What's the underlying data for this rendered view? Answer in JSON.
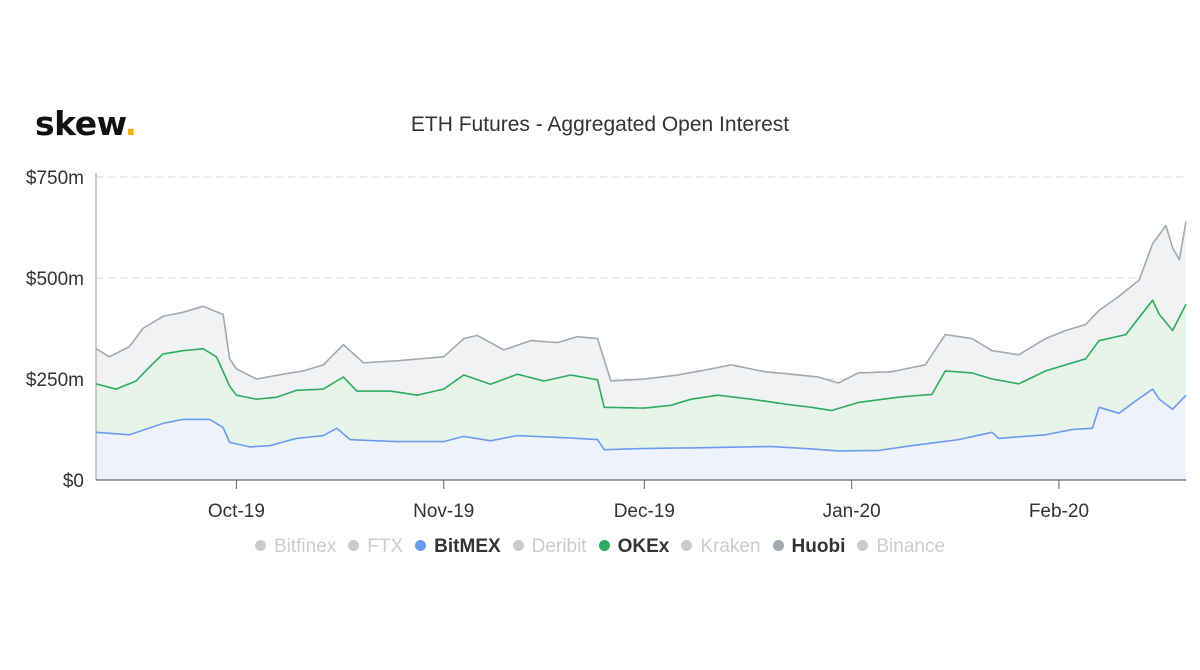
{
  "logo": {
    "text": "skew",
    "dot": "."
  },
  "chart_data": {
    "type": "area",
    "title": "ETH Futures - Aggregated Open Interest",
    "stacked": true,
    "ylim": [
      0,
      750
    ],
    "y_ticks": [
      "$0",
      "$250m",
      "$500m",
      "$750m"
    ],
    "y_tick_values": [
      0,
      250,
      500,
      750
    ],
    "x_range": [
      "2019-09-10",
      "2020-02-20"
    ],
    "x_ticks": [
      {
        "date": "2019-10-01",
        "label": "Oct-19"
      },
      {
        "date": "2019-11-01",
        "label": "Nov-19"
      },
      {
        "date": "2019-12-01",
        "label": "Dec-19"
      },
      {
        "date": "2020-01-01",
        "label": "Jan-20"
      },
      {
        "date": "2020-02-01",
        "label": "Feb-20"
      }
    ],
    "grid": true,
    "legend_position": "bottom",
    "legend": [
      {
        "name": "Bitfinex",
        "color": "#cccccc",
        "visible": false
      },
      {
        "name": "FTX",
        "color": "#cccccc",
        "visible": false
      },
      {
        "name": "BitMEX",
        "color": "#6b9bef",
        "visible": true
      },
      {
        "name": "Deribit",
        "color": "#cccccc",
        "visible": false
      },
      {
        "name": "OKEx",
        "color": "#2eab5e",
        "visible": true
      },
      {
        "name": "Kraken",
        "color": "#cccccc",
        "visible": false
      },
      {
        "name": "Huobi",
        "color": "#a3a9b1",
        "visible": true
      },
      {
        "name": "Binance",
        "color": "#cccccc",
        "visible": false
      }
    ],
    "series": [
      {
        "name": "BitMEX",
        "color": "#6b9bef",
        "fill": "#eef2fd",
        "points": [
          [
            "2019-09-10",
            118
          ],
          [
            "2019-09-15",
            112
          ],
          [
            "2019-09-20",
            140
          ],
          [
            "2019-09-23",
            150
          ],
          [
            "2019-09-27",
            150
          ],
          [
            "2019-09-29",
            130
          ],
          [
            "2019-09-30",
            93
          ],
          [
            "2019-10-03",
            82
          ],
          [
            "2019-10-06",
            85
          ],
          [
            "2019-10-10",
            103
          ],
          [
            "2019-10-14",
            110
          ],
          [
            "2019-10-16",
            128
          ],
          [
            "2019-10-18",
            100
          ],
          [
            "2019-10-25",
            95
          ],
          [
            "2019-11-01",
            95
          ],
          [
            "2019-11-04",
            108
          ],
          [
            "2019-11-08",
            97
          ],
          [
            "2019-11-12",
            110
          ],
          [
            "2019-11-20",
            104
          ],
          [
            "2019-11-24",
            100
          ],
          [
            "2019-11-25",
            75
          ],
          [
            "2019-12-01",
            78
          ],
          [
            "2019-12-10",
            80
          ],
          [
            "2019-12-20",
            83
          ],
          [
            "2019-12-26",
            77
          ],
          [
            "2019-12-30",
            72
          ],
          [
            "2020-01-05",
            73
          ],
          [
            "2020-01-10",
            85
          ],
          [
            "2020-01-17",
            100
          ],
          [
            "2020-01-22",
            118
          ],
          [
            "2020-01-23",
            103
          ],
          [
            "2020-01-30",
            112
          ],
          [
            "2020-02-03",
            125
          ],
          [
            "2020-02-06",
            128
          ],
          [
            "2020-02-07",
            180
          ],
          [
            "2020-02-10",
            165
          ],
          [
            "2020-02-12",
            190
          ],
          [
            "2020-02-15",
            225
          ],
          [
            "2020-02-16",
            200
          ],
          [
            "2020-02-18",
            175
          ],
          [
            "2020-02-20",
            210
          ]
        ]
      },
      {
        "name": "OKEx",
        "color": "#2eab5e",
        "fill": "#e6f4ea",
        "points": [
          [
            "2019-09-10",
            238
          ],
          [
            "2019-09-13",
            225
          ],
          [
            "2019-09-16",
            245
          ],
          [
            "2019-09-18",
            280
          ],
          [
            "2019-09-20",
            312
          ],
          [
            "2019-09-23",
            320
          ],
          [
            "2019-09-26",
            325
          ],
          [
            "2019-09-28",
            305
          ],
          [
            "2019-09-30",
            232
          ],
          [
            "2019-10-01",
            210
          ],
          [
            "2019-10-04",
            200
          ],
          [
            "2019-10-07",
            205
          ],
          [
            "2019-10-10",
            222
          ],
          [
            "2019-10-14",
            225
          ],
          [
            "2019-10-17",
            255
          ],
          [
            "2019-10-19",
            220
          ],
          [
            "2019-10-24",
            220
          ],
          [
            "2019-10-28",
            210
          ],
          [
            "2019-11-01",
            225
          ],
          [
            "2019-11-04",
            260
          ],
          [
            "2019-11-08",
            237
          ],
          [
            "2019-11-12",
            262
          ],
          [
            "2019-11-16",
            245
          ],
          [
            "2019-11-20",
            260
          ],
          [
            "2019-11-24",
            248
          ],
          [
            "2019-11-25",
            180
          ],
          [
            "2019-12-01",
            178
          ],
          [
            "2019-12-05",
            185
          ],
          [
            "2019-12-08",
            200
          ],
          [
            "2019-12-12",
            210
          ],
          [
            "2019-12-17",
            200
          ],
          [
            "2019-12-22",
            188
          ],
          [
            "2019-12-26",
            180
          ],
          [
            "2019-12-29",
            172
          ],
          [
            "2020-01-02",
            192
          ],
          [
            "2020-01-08",
            205
          ],
          [
            "2020-01-13",
            212
          ],
          [
            "2020-01-15",
            270
          ],
          [
            "2020-01-19",
            265
          ],
          [
            "2020-01-22",
            250
          ],
          [
            "2020-01-26",
            238
          ],
          [
            "2020-01-30",
            270
          ],
          [
            "2020-02-02",
            285
          ],
          [
            "2020-02-05",
            300
          ],
          [
            "2020-02-07",
            345
          ],
          [
            "2020-02-11",
            360
          ],
          [
            "2020-02-15",
            445
          ],
          [
            "2020-02-16",
            410
          ],
          [
            "2020-02-18",
            370
          ],
          [
            "2020-02-20",
            435
          ]
        ]
      },
      {
        "name": "Huobi",
        "color": "#a3a9b1",
        "fill": "#f1f2f3",
        "points": [
          [
            "2019-09-10",
            325
          ],
          [
            "2019-09-12",
            305
          ],
          [
            "2019-09-15",
            330
          ],
          [
            "2019-09-17",
            375
          ],
          [
            "2019-09-20",
            405
          ],
          [
            "2019-09-23",
            415
          ],
          [
            "2019-09-26",
            430
          ],
          [
            "2019-09-29",
            410
          ],
          [
            "2019-09-30",
            300
          ],
          [
            "2019-10-01",
            275
          ],
          [
            "2019-10-04",
            250
          ],
          [
            "2019-10-08",
            262
          ],
          [
            "2019-10-11",
            270
          ],
          [
            "2019-10-14",
            285
          ],
          [
            "2019-10-17",
            335
          ],
          [
            "2019-10-20",
            290
          ],
          [
            "2019-10-25",
            295
          ],
          [
            "2019-11-01",
            305
          ],
          [
            "2019-11-04",
            350
          ],
          [
            "2019-11-06",
            358
          ],
          [
            "2019-11-10",
            322
          ],
          [
            "2019-11-14",
            345
          ],
          [
            "2019-11-18",
            340
          ],
          [
            "2019-11-21",
            355
          ],
          [
            "2019-11-24",
            350
          ],
          [
            "2019-11-26",
            245
          ],
          [
            "2019-12-01",
            250
          ],
          [
            "2019-12-06",
            260
          ],
          [
            "2019-12-10",
            272
          ],
          [
            "2019-12-14",
            285
          ],
          [
            "2019-12-19",
            268
          ],
          [
            "2019-12-23",
            262
          ],
          [
            "2019-12-27",
            255
          ],
          [
            "2019-12-30",
            240
          ],
          [
            "2020-01-02",
            265
          ],
          [
            "2020-01-07",
            268
          ],
          [
            "2020-01-12",
            285
          ],
          [
            "2020-01-15",
            360
          ],
          [
            "2020-01-19",
            350
          ],
          [
            "2020-01-22",
            320
          ],
          [
            "2020-01-26",
            310
          ],
          [
            "2020-01-30",
            350
          ],
          [
            "2020-02-02",
            370
          ],
          [
            "2020-02-05",
            385
          ],
          [
            "2020-02-07",
            420
          ],
          [
            "2020-02-10",
            455
          ],
          [
            "2020-02-13",
            495
          ],
          [
            "2020-02-15",
            585
          ],
          [
            "2020-02-17",
            630
          ],
          [
            "2020-02-18",
            575
          ],
          [
            "2020-02-19",
            545
          ],
          [
            "2020-02-20",
            640
          ]
        ]
      }
    ]
  }
}
